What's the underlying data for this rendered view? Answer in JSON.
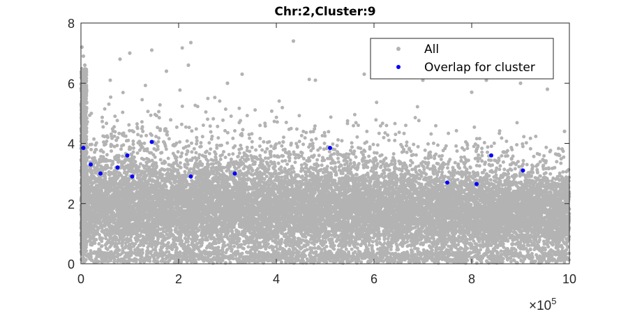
{
  "chart_data": {
    "type": "scatter",
    "title": "Chr:2,Cluster:9",
    "xlabel": "",
    "ylabel": "",
    "xlim": [
      0,
      1000000
    ],
    "ylim": [
      0,
      8
    ],
    "x_ticks": [
      0,
      2,
      4,
      6,
      8,
      10
    ],
    "y_ticks": [
      0,
      2,
      4,
      6,
      8
    ],
    "x_multiplier_base": "×10",
    "x_multiplier_exponent": "5",
    "legend_position": "top-right",
    "grid": false,
    "series": [
      {
        "name": "All",
        "color": "#b3b3b3",
        "description": "dense background of all points; roughly uniform in x, y mostly 0.2–4 with sparse outliers up to ~7.4",
        "outliers": [
          {
            "x": 2000,
            "y": 7.2
          },
          {
            "x": 5000,
            "y": 6.9
          },
          {
            "x": 8000,
            "y": 6.6
          },
          {
            "x": 60000,
            "y": 6.1
          },
          {
            "x": 80000,
            "y": 6.8
          },
          {
            "x": 100000,
            "y": 7.0
          },
          {
            "x": 145000,
            "y": 7.1
          },
          {
            "x": 175000,
            "y": 6.4
          },
          {
            "x": 220000,
            "y": 6.6
          },
          {
            "x": 225000,
            "y": 7.35
          },
          {
            "x": 300000,
            "y": 6.0
          },
          {
            "x": 330000,
            "y": 6.3
          },
          {
            "x": 435000,
            "y": 7.4
          },
          {
            "x": 480000,
            "y": 6.1
          },
          {
            "x": 580000,
            "y": 6.3
          },
          {
            "x": 700000,
            "y": 6.1
          },
          {
            "x": 800000,
            "y": 5.7
          },
          {
            "x": 830000,
            "y": 6.1
          },
          {
            "x": 900000,
            "y": 6.0
          },
          {
            "x": 955000,
            "y": 5.8
          },
          {
            "x": 990000,
            "y": 4.4
          }
        ]
      },
      {
        "name": "Overlap for cluster",
        "color": "#0000ff",
        "x": [
          5000,
          20000,
          40000,
          75000,
          95000,
          105000,
          145000,
          225000,
          315000,
          510000,
          750000,
          810000,
          840000,
          905000
        ],
        "y": [
          3.85,
          3.3,
          3.0,
          3.2,
          3.6,
          2.9,
          4.05,
          2.9,
          3.0,
          3.85,
          2.7,
          2.65,
          3.6,
          3.1
        ]
      }
    ]
  }
}
